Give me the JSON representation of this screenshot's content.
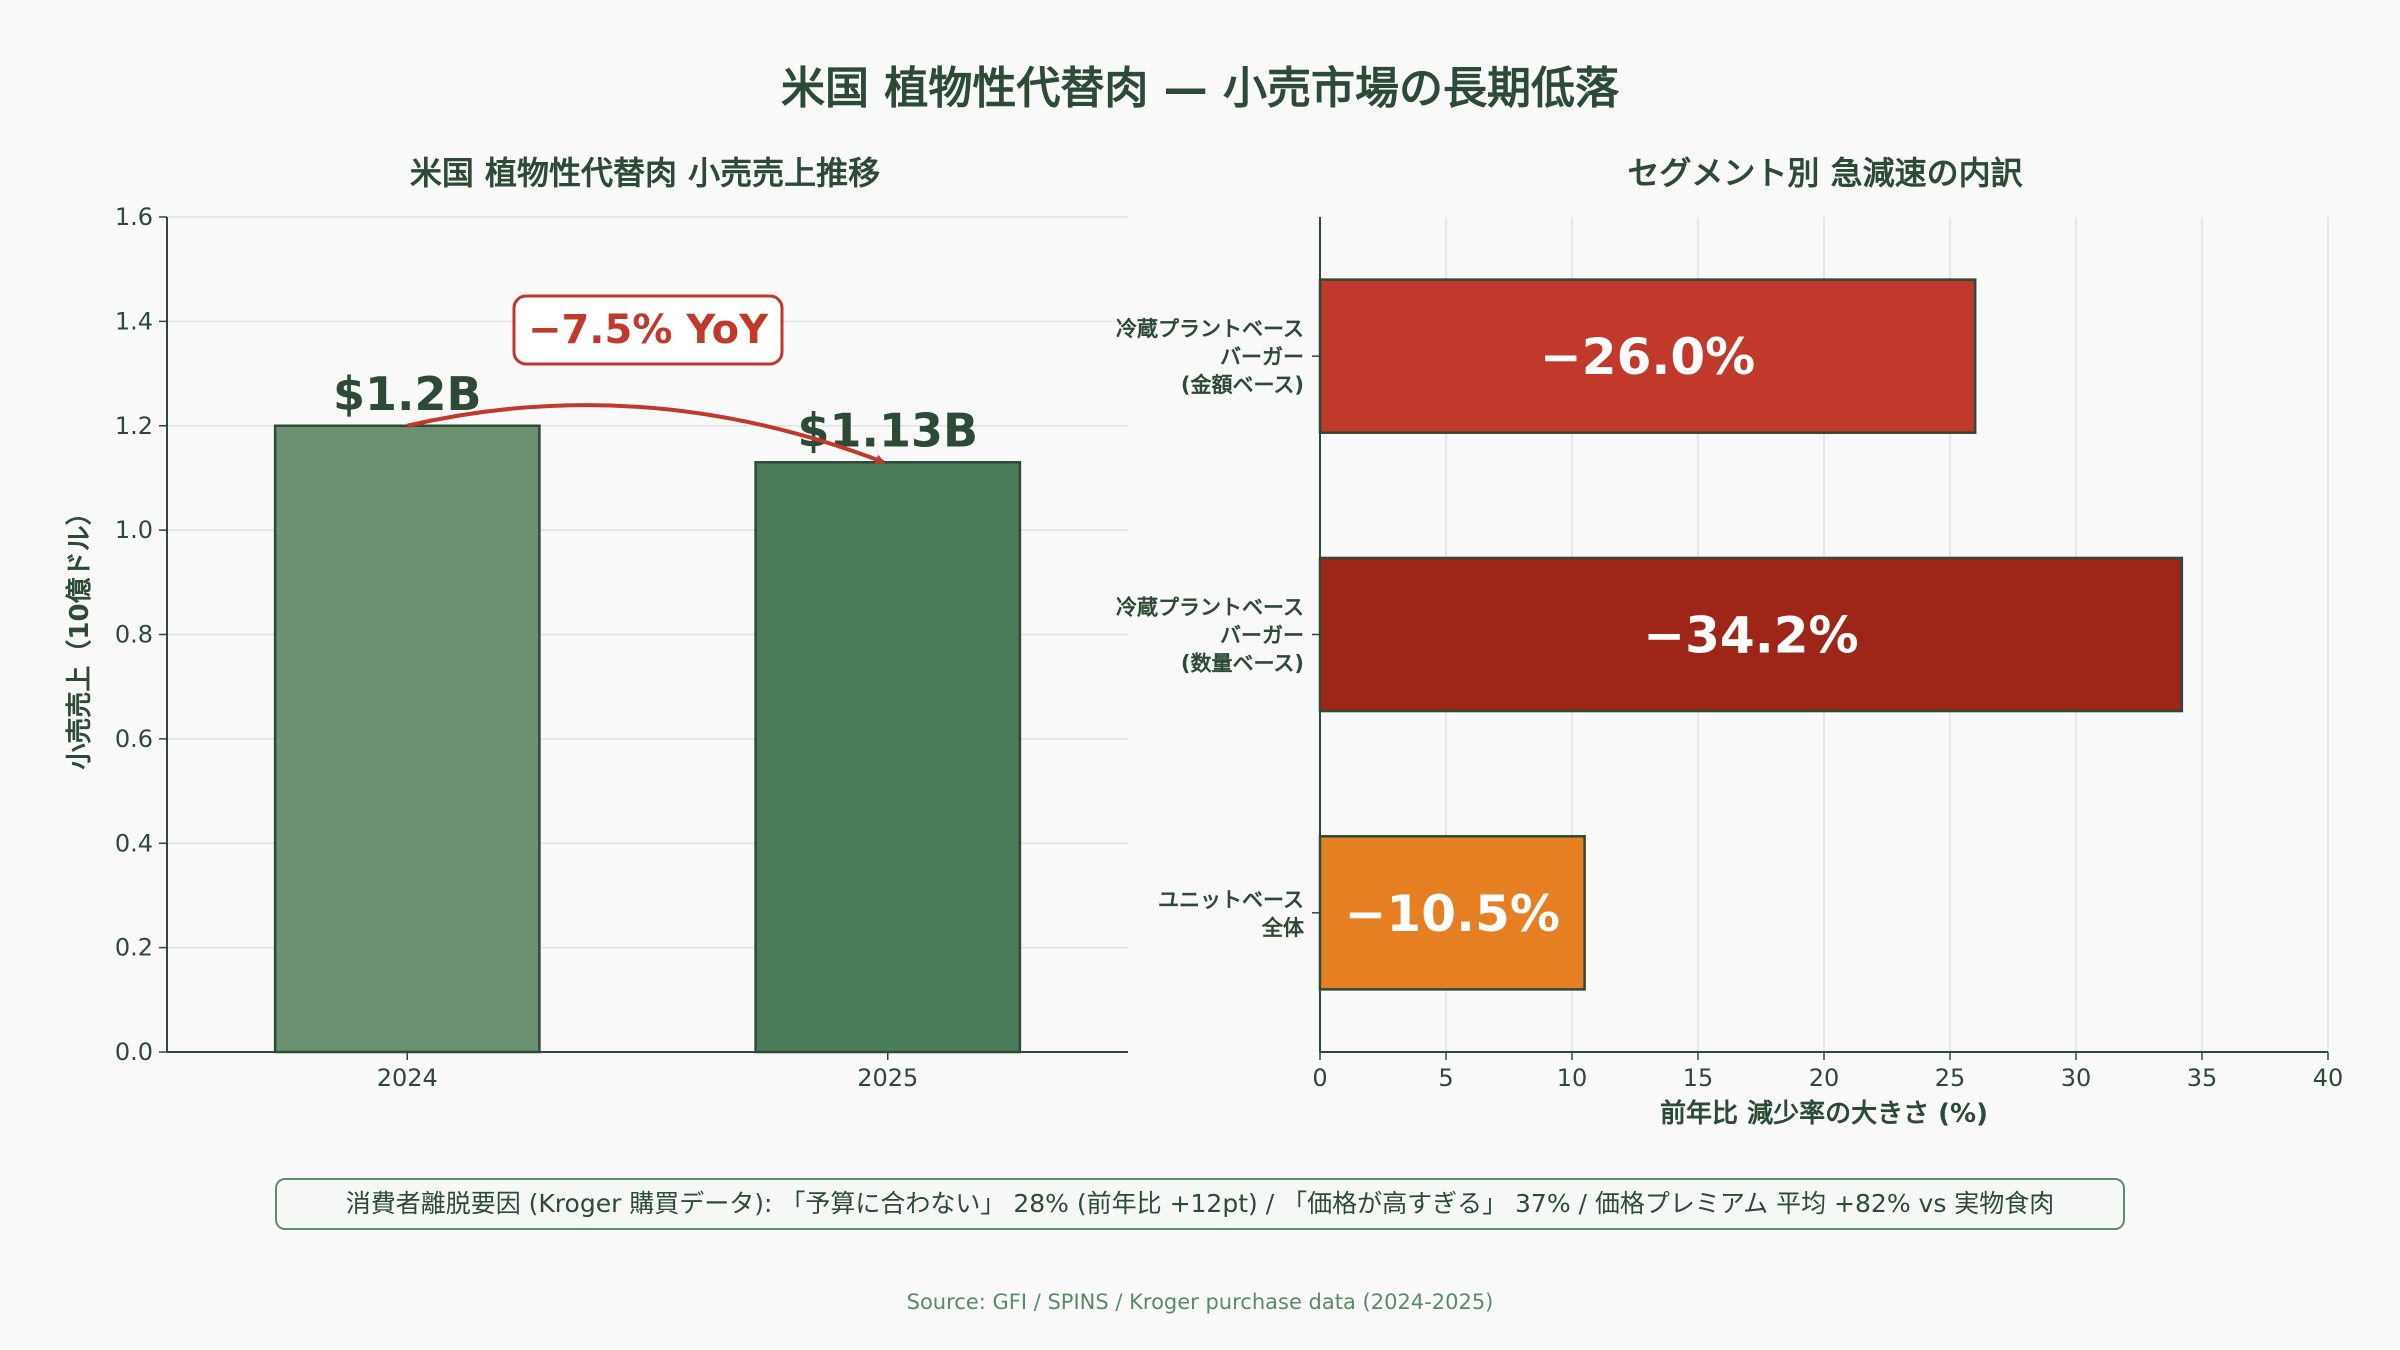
{
  "title": "米国 植物性代替肉 — 小売市場の長期低落",
  "chart_data": [
    {
      "type": "bar",
      "title": "米国 植物性代替肉 小売売上推移",
      "ylabel": "小売売上（10億ドル）",
      "xlabel": "",
      "categories": [
        "2024",
        "2025"
      ],
      "values": [
        1.2,
        1.13
      ],
      "value_labels": [
        "$1.2B",
        "$1.13B"
      ],
      "ylim": [
        0,
        1.6
      ],
      "yticks": [
        "0.0",
        "0.2",
        "0.4",
        "0.6",
        "0.8",
        "1.0",
        "1.2",
        "1.4",
        "1.6"
      ],
      "colors": [
        "#6b9171",
        "#4a7c59"
      ],
      "annotation": "−7.5% YoY",
      "annotation_color": "#c0392b",
      "grid": "horizontal"
    },
    {
      "type": "bar",
      "orientation": "horizontal",
      "title": "セグメント別 急減速の内訳",
      "xlabel": "前年比 減少率の大きさ (%)",
      "ylabel": "",
      "categories": [
        [
          "冷蔵プラントベース",
          "バーガー",
          "(金額ベース)"
        ],
        [
          "冷蔵プラントベース",
          "バーガー",
          "(数量ベース)"
        ],
        [
          "ユニットベース",
          "全体"
        ]
      ],
      "values": [
        26.0,
        34.2,
        10.5
      ],
      "value_labels": [
        "−26.0%",
        "−34.2%",
        "−10.5%"
      ],
      "colors": [
        "#c0392b",
        "#9e2618",
        "#e67e22"
      ],
      "xlim": [
        0,
        40
      ],
      "xticks": [
        "0",
        "5",
        "10",
        "15",
        "20",
        "25",
        "30",
        "35",
        "40"
      ],
      "grid": "vertical"
    }
  ],
  "footer_note": "消費者離脱要因 (Kroger 購買データ): 「予算に合わない」 28% (前年比 +12pt)  /  「価格が高すぎる」 37%  /  価格プレミアム 平均 +82% vs 実物食肉",
  "source": "Source: GFI / SPINS / Kroger purchase data (2024-2025)"
}
